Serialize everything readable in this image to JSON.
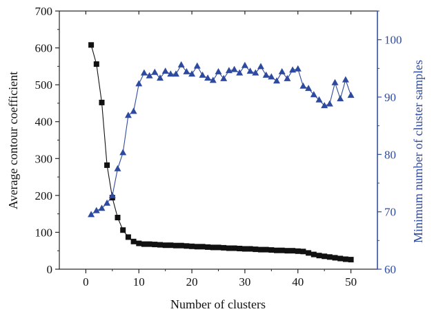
{
  "chart_data": {
    "type": "line",
    "xlabel": "Number of clusters",
    "ylabel": "Average contour coefficient",
    "y2label": "Minimum number of cluster samples",
    "xlim": [
      -5,
      55
    ],
    "ylim": [
      0,
      700
    ],
    "y2lim": [
      60,
      105
    ],
    "xticks": [
      0,
      10,
      20,
      30,
      40,
      50
    ],
    "yticks": [
      0,
      100,
      200,
      300,
      400,
      500,
      600,
      700
    ],
    "y2ticks": [
      60,
      70,
      80,
      90,
      100
    ],
    "grid": false,
    "colors": {
      "left_series": "#111111",
      "right_series": "#2e4a9e",
      "right_axis": "#2e4a9e"
    },
    "series": [
      {
        "axis": "left",
        "marker": "square",
        "x": [
          1,
          2,
          3,
          4,
          5,
          6,
          7,
          8,
          9,
          10,
          11,
          12,
          13,
          14,
          15,
          16,
          17,
          18,
          19,
          20,
          21,
          22,
          23,
          24,
          25,
          26,
          27,
          28,
          29,
          30,
          31,
          32,
          33,
          34,
          35,
          36,
          37,
          38,
          39,
          40,
          41,
          42,
          43,
          44,
          45,
          46,
          47,
          48,
          49,
          50
        ],
        "values": [
          608,
          556,
          452,
          282,
          194,
          140,
          106,
          87,
          75,
          70,
          68,
          68,
          67,
          66,
          65,
          65,
          64,
          64,
          63,
          62,
          61,
          61,
          60,
          59,
          59,
          58,
          57,
          57,
          56,
          55,
          55,
          54,
          53,
          53,
          52,
          51,
          51,
          50,
          50,
          49,
          48,
          44,
          40,
          37,
          35,
          33,
          31,
          29,
          27,
          26
        ]
      },
      {
        "axis": "right",
        "marker": "triangle",
        "x": [
          1,
          2,
          3,
          4,
          5,
          6,
          7,
          8,
          9,
          10,
          11,
          12,
          13,
          14,
          15,
          16,
          17,
          18,
          19,
          20,
          21,
          22,
          23,
          24,
          25,
          26,
          27,
          28,
          29,
          30,
          31,
          32,
          33,
          34,
          35,
          36,
          37,
          38,
          39,
          40,
          41,
          42,
          43,
          44,
          45,
          46,
          47,
          48,
          49,
          50
        ],
        "values": [
          69.5,
          70.2,
          70.6,
          71.5,
          72.8,
          77.5,
          80.3,
          86.8,
          87.5,
          92.3,
          94.2,
          93.7,
          94.3,
          93.3,
          94.5,
          94.0,
          94.0,
          95.6,
          94.4,
          94.0,
          95.4,
          93.8,
          93.3,
          92.9,
          94.4,
          93.2,
          94.6,
          94.8,
          94.2,
          95.5,
          94.5,
          94.2,
          95.3,
          93.8,
          93.5,
          92.8,
          94.4,
          93.2,
          94.7,
          94.9,
          91.9,
          91.5,
          90.4,
          89.5,
          88.5,
          88.8,
          92.5,
          89.7,
          93.0,
          90.3
        ]
      }
    ]
  }
}
